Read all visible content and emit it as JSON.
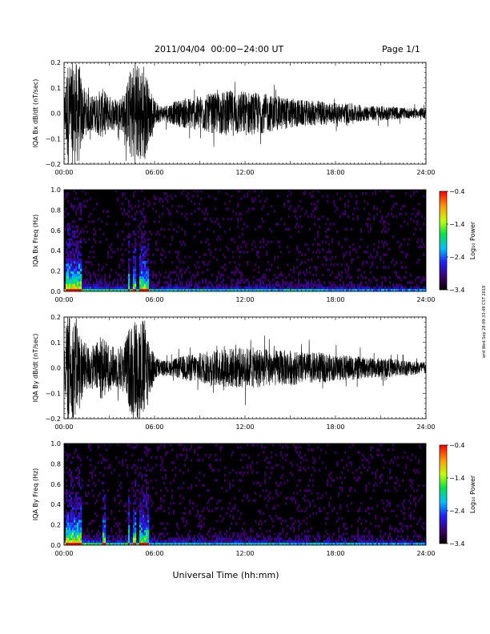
{
  "header": {
    "title": "2011/04/04  00:00−24:00 UT",
    "page": "Page 1/1"
  },
  "side_stamp": "wrd Wed Sep 28 09:33:49 CST 2019",
  "xlabel": "Universal Time (hh:mm)",
  "colors": {
    "waveform": "#000000",
    "spectrogram_bg": "#000000"
  },
  "chart_data": [
    {
      "type": "line",
      "ylabel": "IQA Bx dB/dt (nT/sec)",
      "xlim": [
        0,
        24
      ],
      "ylim": [
        -0.2,
        0.2
      ],
      "x_ticks": [
        "00:00",
        "06:00",
        "12:00",
        "18:00",
        "24:00"
      ],
      "y_ticks": [
        "−0.2",
        "−0.1",
        "0.0",
        "0.1",
        "0.2"
      ],
      "envelope": {
        "x_hours": [
          0.0,
          0.2,
          0.4,
          0.6,
          0.8,
          1.0,
          1.2,
          1.5,
          2.0,
          2.5,
          3.0,
          3.5,
          4.0,
          4.5,
          4.8,
          5.0,
          5.3,
          5.6,
          6.0,
          6.5,
          7.0,
          7.5,
          8.0,
          9.0,
          10.0,
          11.0,
          12.0,
          13.0,
          14.0,
          15.0,
          16.0,
          17.0,
          18.0,
          19.0,
          20.0,
          21.0,
          22.0,
          23.0,
          24.0
        ],
        "amplitude": [
          0.06,
          0.2,
          0.2,
          0.2,
          0.2,
          0.2,
          0.12,
          0.08,
          0.07,
          0.1,
          0.07,
          0.06,
          0.08,
          0.2,
          0.2,
          0.2,
          0.2,
          0.12,
          0.05,
          0.03,
          0.04,
          0.05,
          0.06,
          0.07,
          0.08,
          0.09,
          0.09,
          0.08,
          0.07,
          0.06,
          0.05,
          0.05,
          0.04,
          0.04,
          0.03,
          0.03,
          0.025,
          0.02,
          0.02
        ]
      }
    },
    {
      "type": "heatmap",
      "ylabel": "IQA Bx Freq (Hz)",
      "xlim": [
        0,
        24
      ],
      "ylim": [
        0,
        1.0
      ],
      "x_ticks": [
        "00:00",
        "06:00",
        "12:00",
        "18:00",
        "24:00"
      ],
      "y_ticks": [
        "0.0",
        "0.2",
        "0.4",
        "0.6",
        "0.8",
        "1.0"
      ],
      "colorbar": {
        "label": "Log₁₀ Power",
        "range": [
          -3.4,
          -0.4
        ],
        "ticks": [
          "−0.4",
          "−1.4",
          "−2.4",
          "−3.4"
        ]
      },
      "bright_intervals_hours": [
        [
          0.1,
          1.2
        ],
        [
          4.2,
          4.4
        ],
        [
          4.6,
          4.8
        ],
        [
          5.0,
          5.6
        ]
      ]
    },
    {
      "type": "line",
      "ylabel": "IQA By dB/dt (nT/sec)",
      "xlim": [
        0,
        24
      ],
      "ylim": [
        -0.2,
        0.2
      ],
      "x_ticks": [
        "00:00",
        "06:00",
        "12:00",
        "18:00",
        "24:00"
      ],
      "y_ticks": [
        "−0.2",
        "−0.1",
        "0.0",
        "0.1",
        "0.2"
      ],
      "envelope": {
        "x_hours": [
          0.0,
          0.2,
          0.4,
          0.6,
          0.8,
          1.0,
          1.2,
          1.5,
          2.0,
          2.5,
          3.0,
          3.5,
          4.0,
          4.5,
          4.8,
          5.0,
          5.3,
          5.6,
          6.0,
          6.5,
          7.0,
          7.5,
          8.0,
          9.0,
          10.0,
          11.0,
          12.0,
          13.0,
          14.0,
          15.0,
          16.0,
          17.0,
          18.0,
          19.0,
          20.0,
          21.0,
          22.0,
          23.0,
          24.0
        ],
        "amplitude": [
          0.05,
          0.2,
          0.2,
          0.2,
          0.2,
          0.16,
          0.12,
          0.09,
          0.09,
          0.13,
          0.09,
          0.08,
          0.1,
          0.2,
          0.2,
          0.2,
          0.2,
          0.14,
          0.05,
          0.03,
          0.03,
          0.04,
          0.05,
          0.06,
          0.07,
          0.08,
          0.08,
          0.08,
          0.07,
          0.07,
          0.06,
          0.06,
          0.05,
          0.05,
          0.04,
          0.04,
          0.035,
          0.03,
          0.025
        ]
      }
    },
    {
      "type": "heatmap",
      "ylabel": "IQA By Freq (Hz)",
      "xlim": [
        0,
        24
      ],
      "ylim": [
        0,
        1.0
      ],
      "x_ticks": [
        "00:00",
        "06:00",
        "12:00",
        "18:00",
        "24:00"
      ],
      "y_ticks": [
        "0.0",
        "0.2",
        "0.4",
        "0.6",
        "0.8",
        "1.0"
      ],
      "colorbar": {
        "label": "Log₁₀ Power",
        "range": [
          -3.4,
          -0.4
        ],
        "ticks": [
          "−0.4",
          "−1.4",
          "−2.4",
          "−3.4"
        ]
      },
      "bright_intervals_hours": [
        [
          0.1,
          1.2
        ],
        [
          2.6,
          2.8
        ],
        [
          4.2,
          4.4
        ],
        [
          4.6,
          4.8
        ],
        [
          5.0,
          5.6
        ]
      ]
    }
  ]
}
